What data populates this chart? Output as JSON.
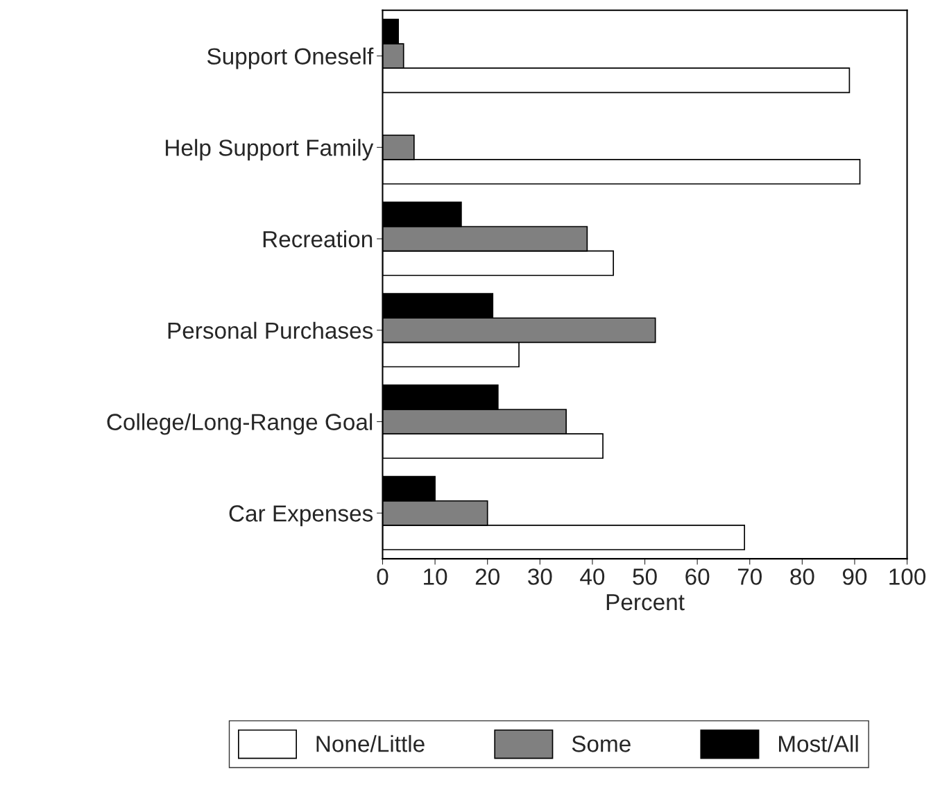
{
  "chart_data": {
    "type": "bar",
    "orientation": "horizontal",
    "xlabel": "Percent",
    "categories": [
      "Support Oneself",
      "Help Support Family",
      "Recreation",
      "Personal Purchases",
      "College/Long-Range Goal",
      "Car Expenses"
    ],
    "series": [
      {
        "name": "None/Little",
        "color": "#ffffff",
        "values": [
          89,
          91,
          44,
          26,
          42,
          69
        ]
      },
      {
        "name": "Some",
        "color": "#808080",
        "values": [
          4,
          6,
          39,
          52,
          35,
          20
        ]
      },
      {
        "name": "Most/All",
        "color": "#000000",
        "values": [
          3,
          null,
          15,
          21,
          22,
          10
        ]
      }
    ],
    "xlim": [
      0,
      100
    ],
    "xticks": [
      0,
      10,
      20,
      30,
      40,
      50,
      60,
      70,
      80,
      90,
      100
    ],
    "grid": false,
    "legend": "bottom"
  }
}
